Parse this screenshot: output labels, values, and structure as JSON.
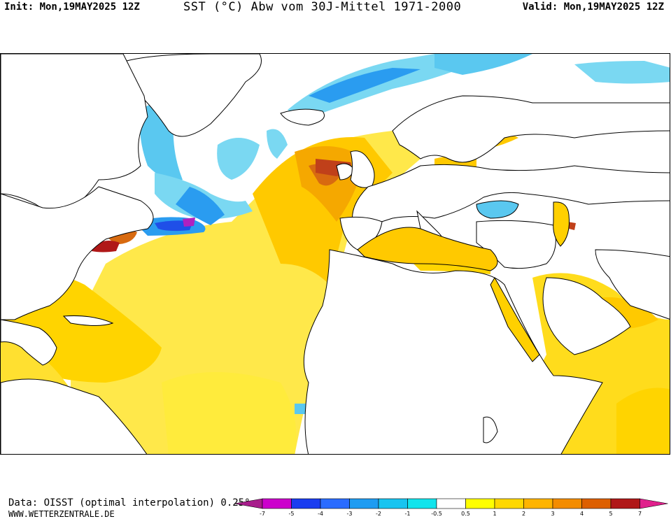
{
  "header": {
    "init": "Init: Mon,19MAY2025 12Z",
    "title": "SST (°C) Abw vom 30J-Mittel 1971-2000",
    "valid": "Valid: Mon,19MAY2025 12Z"
  },
  "footer": {
    "data_source": "Data: OISST (optimal interpolation) 0.25°",
    "website": "WWW.WETTERZENTRALE.DE"
  },
  "legend": {
    "ticks": [
      "-7",
      "-5",
      "-4",
      "-3",
      "-2",
      "-1",
      "-0.5",
      "0.5",
      "1",
      "2",
      "3",
      "4",
      "5",
      "7"
    ],
    "colors": [
      "#a81d8c",
      "#cc00cc",
      "#1a3cf0",
      "#2a6cff",
      "#1e9cf2",
      "#18c4f0",
      "#12e4ec",
      "#ffffff",
      "#ffff00",
      "#ffd800",
      "#ffb400",
      "#f38c00",
      "#dd5f00",
      "#b01818",
      "#e0208c"
    ]
  },
  "colors": {
    "warm_light": "#ffeb3c",
    "warm": "#ffc900",
    "warm_dark": "#f5a800",
    "hot": "#d86a10",
    "cold_light": "#7ad8f2",
    "cold": "#2a9cf0",
    "cold_dark": "#1f4fe8",
    "extreme_cold": "#b020c0",
    "land": "#ffffff",
    "coast": "#000000"
  },
  "map_icons": [
    "coastline-outline",
    "sst-anomaly-field"
  ]
}
